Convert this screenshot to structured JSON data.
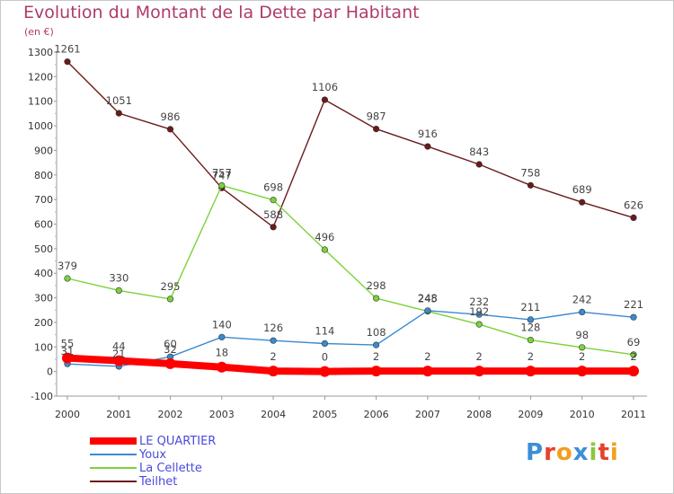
{
  "header": {
    "title": "Evolution du Montant de la Dette par Habitant",
    "subtitle": "(en €)"
  },
  "logo": {
    "text": "Proxiti",
    "letter_colors": [
      "#3b8fd6",
      "#e8402a",
      "#f0a020",
      "#3b8fd6",
      "#8cc63f",
      "#e8402a",
      "#f0a020"
    ]
  },
  "colors": {
    "title": "#b03a6a",
    "legend_text": "#4a4adc"
  },
  "chart_data": {
    "type": "line",
    "x": [
      "2000",
      "2001",
      "2002",
      "2003",
      "2004",
      "2005",
      "2006",
      "2007",
      "2008",
      "2009",
      "2010",
      "2011"
    ],
    "ylim": [
      -100,
      1300
    ],
    "yticks": [
      -100,
      0,
      100,
      200,
      300,
      400,
      500,
      600,
      700,
      800,
      900,
      1000,
      1100,
      1200,
      1300
    ],
    "grid": false,
    "legend_position": "bottom-left",
    "series": [
      {
        "name": "LE QUARTIER",
        "color": "#ff0000",
        "values": [
          55,
          44,
          32,
          18,
          2,
          0,
          2,
          2,
          2,
          2,
          2,
          2
        ]
      },
      {
        "name": "Youx",
        "color": "#3a8ad0",
        "values": [
          31,
          21,
          60,
          140,
          126,
          114,
          108,
          248,
          232,
          211,
          242,
          221
        ]
      },
      {
        "name": "La Cellette",
        "color": "#7bd23a",
        "values": [
          379,
          330,
          295,
          757,
          698,
          496,
          298,
          245,
          192,
          128,
          98,
          69
        ]
      },
      {
        "name": "Teilhet",
        "color": "#6b1a1a",
        "values": [
          1261,
          1051,
          986,
          747,
          588,
          1106,
          987,
          916,
          843,
          758,
          689,
          626
        ]
      }
    ]
  }
}
